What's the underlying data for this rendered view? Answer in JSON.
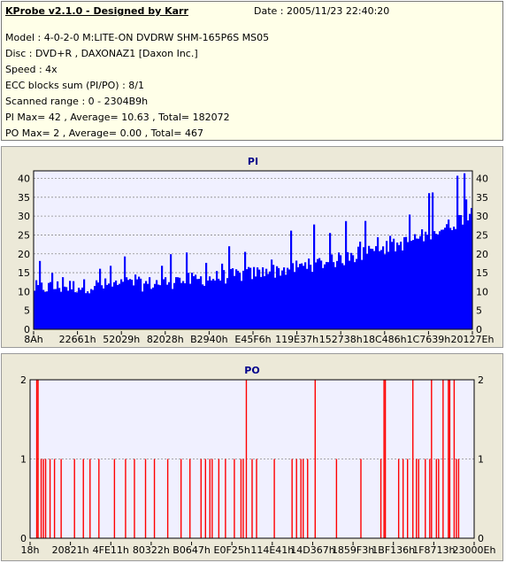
{
  "header": {
    "title": "KProbe v2.1.0 - Designed by Karr",
    "date": "Date : 2005/11/23 22:40:20",
    "lines": [
      "Model : 4-0-2-0 M:LITE-ON DVDRW SHM-165P6S MS05",
      "Disc : DVD+R , DAXONAZ1 [Daxon Inc.]",
      "Speed : 4x",
      "ECC blocks sum (PI/PO) : 8/1",
      "Scanned range : 0 - 2304B9h",
      "PI Max= 42 , Average= 10.63 , Total= 182072",
      "PO Max= 2 , Average= 0.00 , Total= 467"
    ]
  },
  "colors": {
    "pi": "#0000ff",
    "po": "#ff0000",
    "plot_bg": "#f0f0ff",
    "grid": "#8c8c8c",
    "panel_bg": "#ece9d8",
    "info_bg": "#ffffe8"
  },
  "chart_data": [
    {
      "type": "bar",
      "title": "PI",
      "ylim": [
        0,
        42
      ],
      "yticks": [
        0,
        5,
        10,
        15,
        20,
        25,
        30,
        35,
        40
      ],
      "xtick_labels": [
        "8Ah",
        "22661h",
        "52029h",
        "82028h",
        "B2940h",
        "E45F6h",
        "119E37h",
        "152738h",
        "18C486h",
        "1C7639h",
        "20127Eh"
      ],
      "grid": true,
      "x_range": [
        "0",
        "2304B9h"
      ],
      "trend": {
        "x": [
          0.0,
          0.12,
          0.25,
          0.4,
          0.55,
          0.7,
          0.85,
          0.95,
          1.0
        ],
        "baseline": [
          11.0,
          11.5,
          12.0,
          13.5,
          15.5,
          18.5,
          23.0,
          27.5,
          31.0
        ],
        "peak": [
          19.0,
          19.5,
          20.0,
          22.0,
          25.0,
          30.0,
          36.0,
          40.0,
          42.0
        ]
      },
      "max": 42,
      "average": 10.63
    },
    {
      "type": "bar",
      "title": "PO",
      "ylim": [
        0,
        2
      ],
      "yticks": [
        0,
        1,
        2
      ],
      "xtick_labels": [
        "18h",
        "20821h",
        "4FE11h",
        "80322h",
        "B0647h",
        "E0F25h",
        "114E41h",
        "14D367h",
        "1859F3h",
        "1BF136h",
        "1F8713h",
        "23000Eh"
      ],
      "grid": true,
      "spikes_at_2": [
        0.015,
        0.018,
        0.487,
        0.642,
        0.797,
        0.8,
        0.862,
        0.904,
        0.93,
        0.942,
        0.945,
        0.955
      ],
      "spikes_at_1": [
        0.025,
        0.03,
        0.035,
        0.045,
        0.055,
        0.07,
        0.1,
        0.12,
        0.135,
        0.155,
        0.19,
        0.215,
        0.235,
        0.26,
        0.28,
        0.31,
        0.34,
        0.36,
        0.385,
        0.395,
        0.405,
        0.41,
        0.425,
        0.44,
        0.46,
        0.475,
        0.48,
        0.5,
        0.51,
        0.55,
        0.59,
        0.6,
        0.61,
        0.615,
        0.625,
        0.69,
        0.745,
        0.79,
        0.83,
        0.84,
        0.85,
        0.87,
        0.875,
        0.89,
        0.9,
        0.915,
        0.92,
        0.96,
        0.965
      ]
    }
  ]
}
